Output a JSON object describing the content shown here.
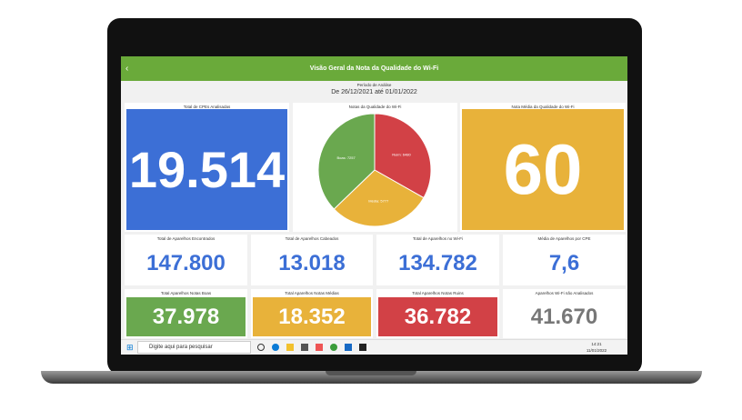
{
  "header": {
    "title": "Visão Geral da Nota da Qualidade do Wi-Fi",
    "period_label": "Período de Análise",
    "period": "De 26/12/2021 até 01/01/2022"
  },
  "cards": [
    {
      "title": "Total de CPEs Analisadas",
      "value": "19.514"
    },
    {
      "title": "Nota Média da Qualidade do Wi-Fi",
      "value": "60"
    },
    {
      "title": "Total de Aparelhos Encontrados",
      "value": "147.800"
    },
    {
      "title": "Total de Aparelhos Cabeados",
      "value": "13.018"
    },
    {
      "title": "Total de Aparelhos no Wi-Fi",
      "value": "134.782"
    },
    {
      "title": "Média de Aparelhos por CPE",
      "value": "7,6"
    },
    {
      "title": "Total Aparelhos Notas Boas",
      "value": "37.978"
    },
    {
      "title": "Total Aparelhos Notas Médias",
      "value": "18.352"
    },
    {
      "title": "Total Aparelhos Notas Ruins",
      "value": "36.782"
    },
    {
      "title": "Aparelhos Wi-Fi não Analisados",
      "value": "41.670"
    }
  ],
  "pie": {
    "type": "pie",
    "title": "Notas da Qualidade do Wi-Fi",
    "categories": [
      "Ruim",
      "Média",
      "Boas"
    ],
    "values": [
      6480,
      5777,
      7257
    ],
    "value_labels": [
      "Ruim: 6480",
      "Média: 5777",
      "Boas: 7257"
    ],
    "colors": [
      "#d24146",
      "#e8b23a",
      "#6aa84f"
    ]
  },
  "taskbar": {
    "search": "Digite aqui para pesquisar",
    "time": "14:21",
    "date": "11/01/2022"
  }
}
